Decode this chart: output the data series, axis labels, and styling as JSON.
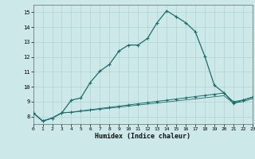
{
  "xlabel": "Humidex (Indice chaleur)",
  "bg_color": "#cce8e8",
  "grid_color": "#b0d4d0",
  "line_color": "#1a6e6a",
  "xlim": [
    0,
    23
  ],
  "ylim": [
    7.5,
    15.5
  ],
  "xticks": [
    0,
    1,
    2,
    3,
    4,
    5,
    6,
    7,
    8,
    9,
    10,
    11,
    12,
    13,
    14,
    15,
    16,
    17,
    18,
    19,
    20,
    21,
    22,
    23
  ],
  "yticks": [
    8,
    9,
    10,
    11,
    12,
    13,
    14,
    15
  ],
  "s1_x": [
    0,
    1,
    2,
    3,
    4,
    5,
    6,
    7,
    8,
    9,
    10,
    11,
    12,
    13,
    14,
    15,
    16,
    17,
    18,
    19,
    20,
    21,
    22,
    23
  ],
  "s1_y": [
    8.25,
    7.7,
    7.9,
    8.25,
    9.1,
    9.25,
    10.3,
    11.05,
    11.5,
    12.4,
    12.8,
    12.8,
    13.25,
    14.3,
    15.1,
    14.7,
    14.3,
    13.7,
    12.05,
    10.1,
    9.6,
    8.9,
    9.1,
    9.3
  ],
  "s2_x": [
    0,
    1,
    2,
    3,
    4,
    5,
    6,
    7,
    8,
    9,
    10,
    11,
    12,
    13,
    14,
    15,
    16,
    17,
    18,
    19,
    20,
    21,
    22,
    23
  ],
  "s2_y": [
    8.25,
    7.7,
    7.9,
    8.25,
    8.3,
    8.38,
    8.46,
    8.54,
    8.62,
    8.7,
    8.78,
    8.86,
    8.94,
    9.02,
    9.1,
    9.18,
    9.26,
    9.34,
    9.42,
    9.5,
    9.58,
    9.0,
    9.1,
    9.3
  ],
  "s3_x": [
    0,
    1,
    2,
    3,
    4,
    5,
    6,
    7,
    8,
    9,
    10,
    11,
    12,
    13,
    14,
    15,
    16,
    17,
    18,
    19,
    20,
    21,
    22,
    23
  ],
  "s3_y": [
    8.25,
    7.7,
    7.9,
    8.25,
    8.28,
    8.35,
    8.42,
    8.49,
    8.56,
    8.63,
    8.7,
    8.77,
    8.84,
    8.91,
    8.98,
    9.05,
    9.12,
    9.19,
    9.26,
    9.33,
    9.4,
    8.9,
    9.0,
    9.2
  ]
}
